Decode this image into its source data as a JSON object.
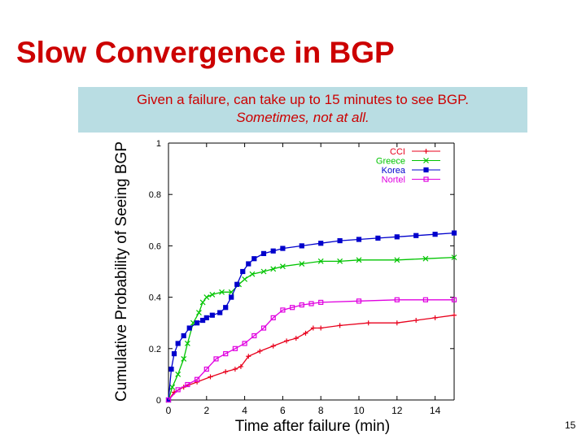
{
  "slide": {
    "title": "Slow Convergence in BGP",
    "callout_line1": "Given a failure, can take up to 15 minutes to see BGP.",
    "callout_line2": "Sometimes, not at all.",
    "page_number": "15"
  },
  "chart_data": {
    "type": "line",
    "xlabel": "Time after failure (min)",
    "ylabel": "Cumulative Probability of Seeing BGP",
    "xlim": [
      0,
      15
    ],
    "ylim": [
      0,
      1
    ],
    "xticks": [
      0,
      2,
      4,
      6,
      8,
      10,
      12,
      14
    ],
    "yticks": [
      0,
      0.2,
      0.4,
      0.6,
      0.8,
      1
    ],
    "ytick_labels": [
      "0",
      "0.2",
      "0.4",
      "0.6",
      "0.8",
      "1"
    ],
    "grid": false,
    "legend_position": "top-right",
    "series": [
      {
        "name": "CCI",
        "color": "#e8001c",
        "marker": "plus",
        "x": [
          0,
          0.3,
          0.8,
          1.5,
          2.2,
          3.0,
          3.5,
          3.8,
          4.2,
          4.8,
          5.5,
          6.2,
          6.7,
          7.2,
          7.6,
          8.0,
          9.0,
          10.5,
          12.0,
          13.0,
          14.0,
          15.0
        ],
        "y": [
          0,
          0.03,
          0.05,
          0.07,
          0.09,
          0.11,
          0.12,
          0.13,
          0.17,
          0.19,
          0.21,
          0.23,
          0.24,
          0.26,
          0.28,
          0.28,
          0.29,
          0.3,
          0.3,
          0.31,
          0.32,
          0.33
        ]
      },
      {
        "name": "Greece",
        "color": "#00c400",
        "marker": "x",
        "x": [
          0,
          0.2,
          0.5,
          0.8,
          1.0,
          1.3,
          1.6,
          1.8,
          2.0,
          2.3,
          2.8,
          3.3,
          3.7,
          4.0,
          4.4,
          5.0,
          5.5,
          6.0,
          7.0,
          8.0,
          9.0,
          10.0,
          12.0,
          13.5,
          15.0
        ],
        "y": [
          0,
          0.05,
          0.1,
          0.16,
          0.22,
          0.3,
          0.34,
          0.38,
          0.4,
          0.41,
          0.42,
          0.42,
          0.45,
          0.47,
          0.49,
          0.5,
          0.51,
          0.52,
          0.53,
          0.54,
          0.54,
          0.545,
          0.545,
          0.55,
          0.555
        ]
      },
      {
        "name": "Korea",
        "color": "#0000cc",
        "marker": "square",
        "x": [
          0,
          0.15,
          0.3,
          0.5,
          0.8,
          1.1,
          1.5,
          1.8,
          2.0,
          2.3,
          2.7,
          3.0,
          3.3,
          3.6,
          3.9,
          4.2,
          4.5,
          5.0,
          5.5,
          6.0,
          7.0,
          8.0,
          9.0,
          10.0,
          11.0,
          12.0,
          13.0,
          14.0,
          15.0
        ],
        "y": [
          0,
          0.12,
          0.18,
          0.22,
          0.25,
          0.28,
          0.3,
          0.31,
          0.32,
          0.33,
          0.34,
          0.36,
          0.4,
          0.45,
          0.5,
          0.53,
          0.55,
          0.57,
          0.58,
          0.59,
          0.6,
          0.61,
          0.62,
          0.625,
          0.63,
          0.635,
          0.64,
          0.645,
          0.65
        ]
      },
      {
        "name": "Nortel",
        "color": "#e000e0",
        "marker": "box",
        "x": [
          0,
          0.5,
          1.0,
          1.5,
          2.0,
          2.5,
          3.0,
          3.5,
          4.0,
          4.5,
          5.0,
          5.5,
          6.0,
          6.5,
          7.0,
          7.5,
          8.0,
          10.0,
          12.0,
          13.5,
          15.0
        ],
        "y": [
          0,
          0.04,
          0.06,
          0.08,
          0.12,
          0.16,
          0.18,
          0.2,
          0.22,
          0.25,
          0.28,
          0.32,
          0.35,
          0.36,
          0.37,
          0.375,
          0.38,
          0.385,
          0.39,
          0.39,
          0.39
        ]
      }
    ]
  }
}
